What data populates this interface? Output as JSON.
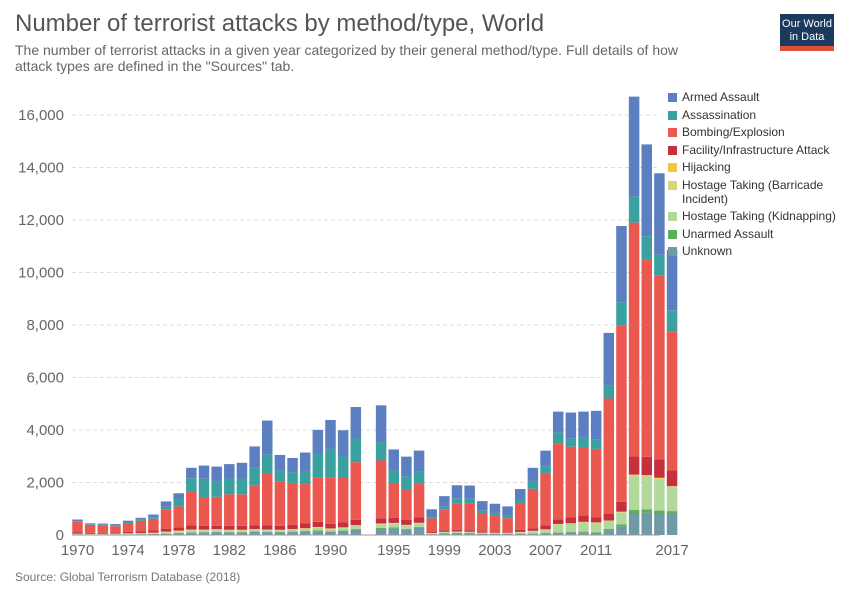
{
  "header": {
    "title": "Number of terrorist attacks by method/type, World",
    "subtitle": "The number of terrorist attacks in a given year categorized by their general method/type. Full details of how attack types are defined in the \"Sources\" tab.",
    "logo_text": "Our World in Data"
  },
  "footer": {
    "source": "Source: Global Terrorism Database (2018)"
  },
  "colors": {
    "Armed Assault": "#5b7fc0",
    "Assassination": "#3aa0a0",
    "Bombing/Explosion": "#ea5850",
    "Facility/Infrastructure Attack": "#c6303e",
    "Hijacking": "#f4c53d",
    "Hostage Taking (Barricade Incident)": "#d8d672",
    "Hostage Taking (Kidnapping)": "#b3d89c",
    "Unarmed Assault": "#5dae5a",
    "Unknown": "#6f9aa8"
  },
  "legend": [
    "Armed Assault",
    "Assassination",
    "Bombing/Explosion",
    "Facility/Infrastructure Attack",
    "Hijacking",
    "Hostage Taking (Barricade Incident)",
    "Hostage Taking (Kidnapping)",
    "Unarmed Assault",
    "Unknown"
  ],
  "chart_data": {
    "type": "bar",
    "stacked": true,
    "x": [
      1970,
      1971,
      1972,
      1973,
      1974,
      1975,
      1976,
      1977,
      1978,
      1979,
      1980,
      1981,
      1982,
      1983,
      1984,
      1985,
      1986,
      1987,
      1988,
      1989,
      1990,
      1991,
      1992,
      1994,
      1995,
      1996,
      1997,
      1998,
      1999,
      2000,
      2001,
      2002,
      2003,
      2004,
      2005,
      2006,
      2007,
      2008,
      2009,
      2010,
      2011,
      2012,
      2013,
      2014,
      2015,
      2016,
      2017
    ],
    "x_tick_labels": [
      "1970",
      "1974",
      "1978",
      "1982",
      "1986",
      "1990",
      "1995",
      "1999",
      "2003",
      "2007",
      "2011",
      "2017"
    ],
    "y_ticks": [
      0,
      2000,
      4000,
      6000,
      8000,
      10000,
      12000,
      14000,
      16000
    ],
    "y_tick_labels": [
      "0",
      "2,000",
      "4,000",
      "6,000",
      "8,000",
      "10,000",
      "12,000",
      "14,000",
      "16,000"
    ],
    "ylim": [
      0,
      17000
    ],
    "grid": "horizontal dashed",
    "legend_position": "right",
    "series": [
      {
        "name": "Unknown",
        "values": [
          20,
          15,
          15,
          20,
          25,
          30,
          40,
          50,
          70,
          90,
          100,
          110,
          100,
          100,
          120,
          110,
          100,
          110,
          130,
          150,
          120,
          150,
          200,
          230,
          250,
          200,
          280,
          30,
          60,
          70,
          60,
          40,
          40,
          40,
          50,
          50,
          60,
          80,
          100,
          100,
          80,
          180,
          320,
          800,
          850,
          800,
          800
        ]
      },
      {
        "name": "Unarmed Assault",
        "values": [
          5,
          5,
          5,
          5,
          5,
          5,
          5,
          10,
          10,
          10,
          10,
          10,
          10,
          10,
          15,
          15,
          15,
          20,
          20,
          25,
          20,
          20,
          30,
          40,
          40,
          30,
          30,
          10,
          10,
          15,
          15,
          10,
          10,
          10,
          10,
          15,
          15,
          20,
          25,
          30,
          30,
          50,
          80,
          150,
          130,
          130,
          110
        ]
      },
      {
        "name": "Hostage Taking (Kidnapping)",
        "values": [
          10,
          10,
          10,
          15,
          15,
          20,
          25,
          40,
          60,
          80,
          60,
          70,
          60,
          60,
          60,
          60,
          60,
          70,
          80,
          100,
          90,
          100,
          120,
          140,
          140,
          130,
          130,
          30,
          40,
          40,
          40,
          30,
          30,
          30,
          50,
          80,
          120,
          300,
          300,
          350,
          350,
          300,
          450,
          1300,
          1250,
          1200,
          900
        ]
      },
      {
        "name": "Hostage Taking (Barricade Incident)",
        "values": [
          5,
          5,
          5,
          5,
          5,
          5,
          5,
          10,
          10,
          10,
          15,
          15,
          15,
          15,
          15,
          10,
          10,
          10,
          15,
          15,
          10,
          10,
          10,
          15,
          15,
          15,
          15,
          5,
          5,
          5,
          5,
          5,
          5,
          5,
          5,
          5,
          10,
          10,
          10,
          10,
          10,
          10,
          20,
          30,
          30,
          30,
          30
        ]
      },
      {
        "name": "Hijacking",
        "values": [
          10,
          10,
          10,
          10,
          15,
          15,
          15,
          20,
          20,
          20,
          20,
          20,
          15,
          15,
          15,
          15,
          15,
          15,
          15,
          15,
          10,
          10,
          15,
          15,
          15,
          10,
          10,
          5,
          5,
          5,
          5,
          5,
          5,
          5,
          5,
          10,
          10,
          10,
          10,
          10,
          10,
          10,
          20,
          20,
          20,
          20,
          20
        ]
      },
      {
        "name": "Facility/Infrastructure Attack",
        "values": [
          60,
          40,
          40,
          50,
          60,
          70,
          80,
          100,
          120,
          150,
          140,
          130,
          150,
          150,
          150,
          150,
          150,
          160,
          180,
          200,
          180,
          200,
          200,
          200,
          200,
          200,
          200,
          50,
          60,
          60,
          60,
          50,
          50,
          50,
          80,
          100,
          150,
          180,
          220,
          250,
          200,
          250,
          380,
          700,
          700,
          700,
          600
        ]
      },
      {
        "name": "Bombing/Explosion",
        "values": [
          400,
          300,
          280,
          230,
          330,
          400,
          450,
          750,
          800,
          1300,
          1100,
          1100,
          1200,
          1200,
          1500,
          2000,
          1700,
          1600,
          1500,
          1700,
          1750,
          1700,
          2200,
          2200,
          1300,
          1150,
          1300,
          500,
          800,
          1000,
          1000,
          700,
          600,
          500,
          1000,
          1500,
          2000,
          2900,
          2700,
          2600,
          2600,
          4400,
          6700,
          8900,
          7500,
          7000,
          5300
        ]
      },
      {
        "name": "Assassination",
        "values": [
          20,
          20,
          30,
          40,
          40,
          50,
          60,
          100,
          300,
          500,
          700,
          600,
          600,
          600,
          700,
          700,
          400,
          400,
          500,
          900,
          1100,
          800,
          900,
          700,
          500,
          500,
          450,
          50,
          100,
          200,
          200,
          100,
          100,
          100,
          150,
          300,
          250,
          400,
          300,
          350,
          350,
          500,
          900,
          1000,
          900,
          800,
          800
        ]
      },
      {
        "name": "Armed Assault",
        "values": [
          60,
          40,
          40,
          40,
          50,
          60,
          100,
          200,
          200,
          400,
          500,
          550,
          550,
          600,
          800,
          1300,
          600,
          550,
          700,
          900,
          1100,
          1000,
          1200,
          1400,
          800,
          750,
          800,
          300,
          400,
          500,
          500,
          350,
          350,
          350,
          400,
          500,
          600,
          800,
          1000,
          1000,
          1100,
          2000,
          2900,
          3800,
          3500,
          3100,
          2300
        ]
      }
    ]
  }
}
